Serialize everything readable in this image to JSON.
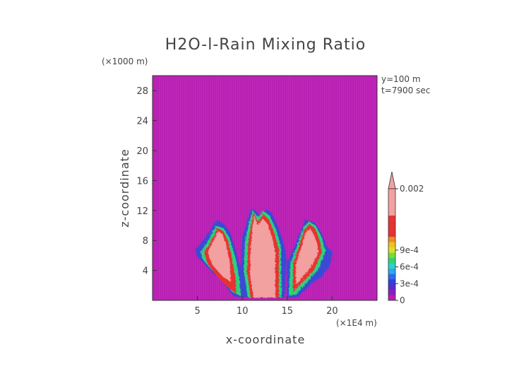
{
  "chart_data": {
    "type": "heatmap",
    "title": "H2O-l-Rain Mixing Ratio",
    "xlabel": "x-coordinate",
    "ylabel": "z-coordinate",
    "x_unit": "(×1E4 m)",
    "z_unit": "(×1000 m)",
    "xlim": [
      0,
      25
    ],
    "zlim": [
      0,
      30
    ],
    "x_ticks": [
      "5",
      "10",
      "15",
      "20"
    ],
    "x_tick_values": [
      5,
      10,
      15,
      20
    ],
    "z_ticks": [
      "4",
      "8",
      "12",
      "16",
      "20",
      "24",
      "28"
    ],
    "z_tick_values": [
      4,
      8,
      12,
      16,
      20,
      24,
      28
    ],
    "annotations": [
      "y=100 m",
      "t=7900 sec"
    ],
    "colorbar": {
      "labels": [
        "0.002",
        "9e-4",
        "6e-4",
        "3e-4",
        "0"
      ],
      "label_values": [
        0.002,
        0.0009,
        0.0006,
        0.0003,
        0
      ],
      "max_extend": true
    },
    "background_color": "#b81fb3",
    "plumes": [
      {
        "name": "left",
        "x_range": [
          5.0,
          9.3
        ],
        "z_top": 10.2
      },
      {
        "name": "center-left",
        "x_range": [
          9.5,
          12.0
        ],
        "z_top": 12.5
      },
      {
        "name": "center-right",
        "x_range": [
          12.0,
          14.8
        ],
        "z_top": 12.0
      },
      {
        "name": "right",
        "x_range": [
          15.0,
          19.8
        ],
        "z_top": 10.8
      }
    ]
  }
}
